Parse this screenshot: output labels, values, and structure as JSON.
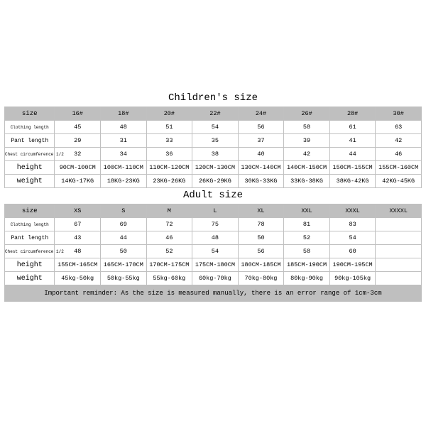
{
  "meta": {
    "background_color": "#ffffff",
    "header_bg": "#bfbfbf",
    "border_color": "#c0c0c0",
    "font_family": "Courier New, monospace"
  },
  "children": {
    "title": "Children's size",
    "columns": [
      "size",
      "16#",
      "18#",
      "20#",
      "22#",
      "24#",
      "26#",
      "28#",
      "30#"
    ],
    "rows": [
      {
        "label": "Clothing length",
        "label_fontsize": 6,
        "cells": [
          "45",
          "48",
          "51",
          "54",
          "56",
          "58",
          "61",
          "63"
        ]
      },
      {
        "label": "Pant length",
        "label_fontsize": 8,
        "cells": [
          "29",
          "31",
          "33",
          "35",
          "37",
          "39",
          "41",
          "42"
        ]
      },
      {
        "label": "Chest circumference 1/2",
        "label_fontsize": 6,
        "cells": [
          "32",
          "34",
          "36",
          "38",
          "40",
          "42",
          "44",
          "46"
        ]
      },
      {
        "label": "height",
        "label_fontsize": 10,
        "cells": [
          "90CM-100CM",
          "100CM-110CM",
          "110CM-120CM",
          "120CM-130CM",
          "130CM-140CM",
          "140CM-150CM",
          "150CM-155CM",
          "155CM-160CM"
        ]
      },
      {
        "label": "weight",
        "label_fontsize": 10,
        "cells": [
          "14KG-17KG",
          "18KG-23KG",
          "23KG-26KG",
          "26KG-29KG",
          "30KG-33KG",
          "33KG-38KG",
          "38KG-42KG",
          "42KG-45KG"
        ]
      }
    ]
  },
  "adult": {
    "title": "Adult size",
    "columns": [
      "size",
      "XS",
      "S",
      "M",
      "L",
      "XL",
      "XXL",
      "XXXL",
      "XXXXL"
    ],
    "rows": [
      {
        "label": "Clothing length",
        "label_fontsize": 6,
        "cells": [
          "67",
          "69",
          "72",
          "75",
          "78",
          "81",
          "83",
          ""
        ]
      },
      {
        "label": "Pant length",
        "label_fontsize": 8,
        "cells": [
          "43",
          "44",
          "46",
          "48",
          "50",
          "52",
          "54",
          ""
        ]
      },
      {
        "label": "Chest circumference 1/2",
        "label_fontsize": 6,
        "cells": [
          "48",
          "50",
          "52",
          "54",
          "56",
          "58",
          "60",
          ""
        ]
      },
      {
        "label": "height",
        "label_fontsize": 10,
        "cells": [
          "155CM-165CM",
          "165CM-170CM",
          "170CM-175CM",
          "175CM-180CM",
          "180CM-185CM",
          "185CM-190CM",
          "190CM-195CM",
          ""
        ]
      },
      {
        "label": "weight",
        "label_fontsize": 10,
        "cells": [
          "45kg-50kg",
          "50kg-55kg",
          "55kg-60kg",
          "60kg-70kg",
          "70kg-80kg",
          "80kg-90kg",
          "90kg-105kg",
          ""
        ]
      }
    ]
  },
  "note": "Important reminder: As the size is measured manually, there is an error range of 1cm-3cm"
}
